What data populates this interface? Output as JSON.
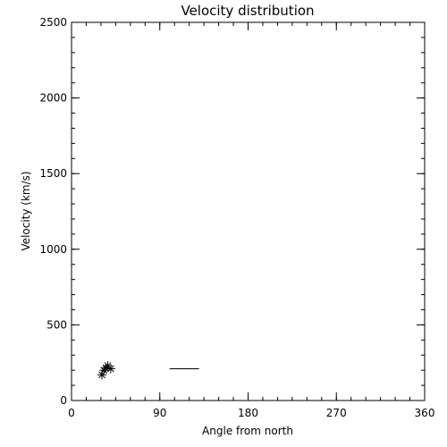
{
  "chart_data": {
    "type": "scatter",
    "title": "Velocity distribution",
    "xlabel": "Angle from north",
    "ylabel": "Velocity (km/s)",
    "xlim": [
      0,
      360
    ],
    "ylim": [
      0,
      2500
    ],
    "xticks": [
      0,
      90,
      180,
      270,
      360
    ],
    "yticks": [
      0,
      500,
      1000,
      1500,
      2000,
      2500
    ],
    "xticks_minor_step": 15,
    "yticks_minor_step": 100,
    "grid": false,
    "marker": "asterisk",
    "points": [
      {
        "x": 31,
        "y": 170
      },
      {
        "x": 33,
        "y": 200
      },
      {
        "x": 35,
        "y": 215
      },
      {
        "x": 37,
        "y": 230
      },
      {
        "x": 40,
        "y": 210
      }
    ],
    "segments": [
      {
        "x1": 100,
        "x2": 130,
        "y": 210
      }
    ]
  }
}
